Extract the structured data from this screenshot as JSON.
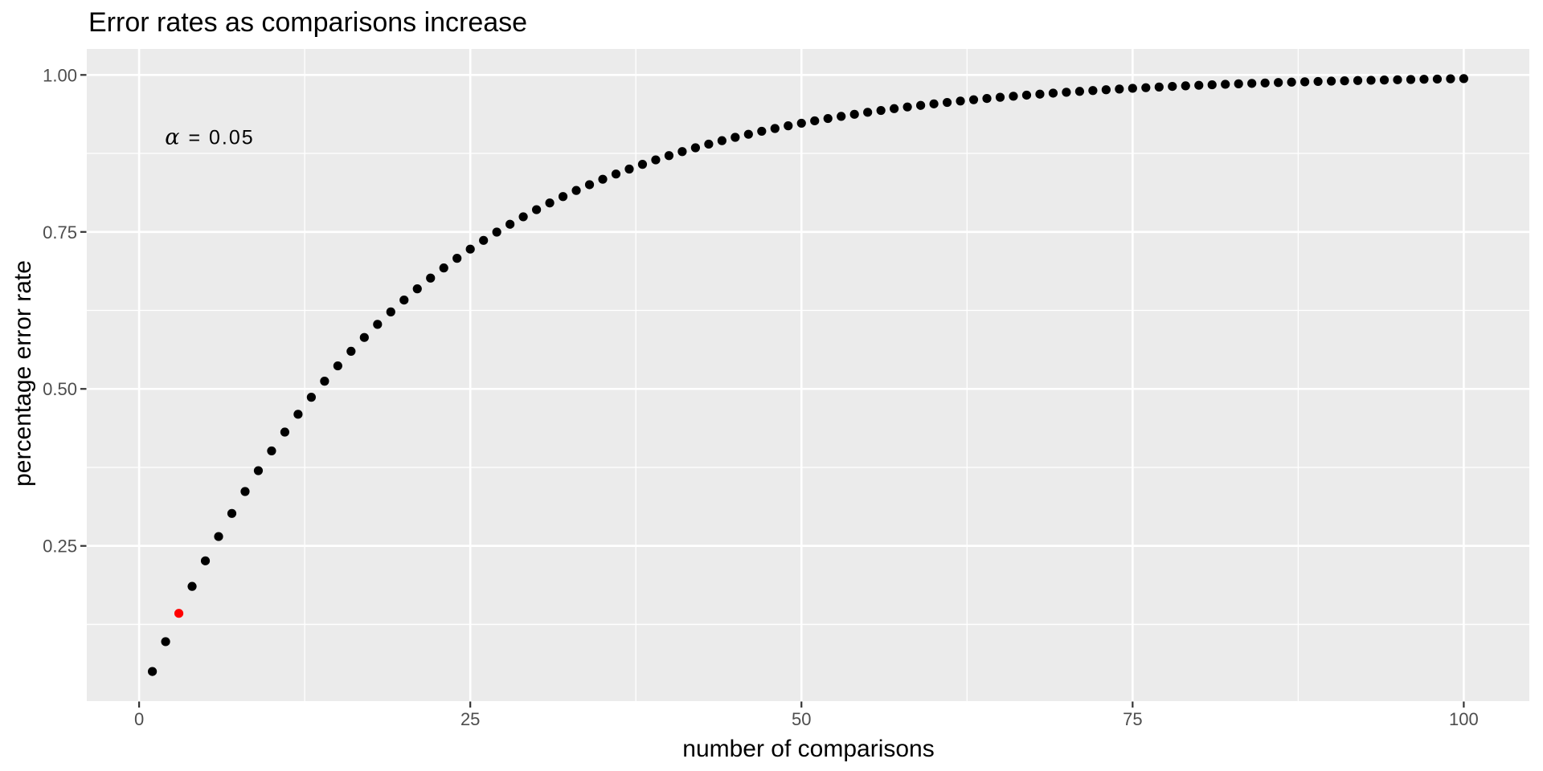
{
  "chart_data": {
    "type": "scatter",
    "title": "Error rates as comparisons increase",
    "xlabel": "number of comparisons",
    "ylabel": "percentage error rate",
    "annotation": {
      "text": "α = 0.05",
      "symbol": "α",
      "rest": " = 0.05",
      "x": 5,
      "y": 0.9
    },
    "x": [
      1,
      2,
      3,
      4,
      5,
      6,
      7,
      8,
      9,
      10,
      11,
      12,
      13,
      14,
      15,
      16,
      17,
      18,
      19,
      20,
      21,
      22,
      23,
      24,
      25,
      26,
      27,
      28,
      29,
      30,
      31,
      32,
      33,
      34,
      35,
      36,
      37,
      38,
      39,
      40,
      41,
      42,
      43,
      44,
      45,
      46,
      47,
      48,
      49,
      50,
      51,
      52,
      53,
      54,
      55,
      56,
      57,
      58,
      59,
      60,
      61,
      62,
      63,
      64,
      65,
      66,
      67,
      68,
      69,
      70,
      71,
      72,
      73,
      74,
      75,
      76,
      77,
      78,
      79,
      80,
      81,
      82,
      83,
      84,
      85,
      86,
      87,
      88,
      89,
      90,
      91,
      92,
      93,
      94,
      95,
      96,
      97,
      98,
      99,
      100
    ],
    "y": [
      0.05,
      0.0975,
      0.1426,
      0.1855,
      0.2262,
      0.2649,
      0.3017,
      0.3366,
      0.3698,
      0.4013,
      0.4312,
      0.4596,
      0.4867,
      0.5123,
      0.5367,
      0.5599,
      0.5819,
      0.6028,
      0.6226,
      0.6415,
      0.6594,
      0.6765,
      0.6926,
      0.708,
      0.7226,
      0.7365,
      0.7497,
      0.7622,
      0.7741,
      0.7854,
      0.7961,
      0.8063,
      0.816,
      0.8252,
      0.8339,
      0.8422,
      0.8501,
      0.8576,
      0.8647,
      0.8715,
      0.8779,
      0.884,
      0.8898,
      0.8953,
      0.9006,
      0.9055,
      0.9103,
      0.9147,
      0.919,
      0.9231,
      0.9269,
      0.9306,
      0.934,
      0.9373,
      0.9405,
      0.9434,
      0.9463,
      0.949,
      0.9515,
      0.9539,
      0.9562,
      0.9584,
      0.9605,
      0.9625,
      0.9644,
      0.9661,
      0.9678,
      0.9694,
      0.971,
      0.9724,
      0.9738,
      0.9751,
      0.9764,
      0.9775,
      0.9787,
      0.9797,
      0.9807,
      0.9817,
      0.9826,
      0.9835,
      0.9843,
      0.9851,
      0.9858,
      0.9865,
      0.9872,
      0.9879,
      0.9885,
      0.989,
      0.9896,
      0.9901,
      0.9906,
      0.9911,
      0.9915,
      0.9919,
      0.9923,
      0.9927,
      0.9931,
      0.9934,
      0.9938,
      0.9941
    ],
    "highlight": {
      "index": 2,
      "x": 3,
      "y": 0.1426,
      "color": "#FF0000"
    },
    "xlim": [
      -3.95,
      104.95
    ],
    "ylim": [
      0.0028,
      1.0413
    ],
    "x_tick_values": [
      0,
      25,
      50,
      75,
      100
    ],
    "x_tick_labels": [
      "0",
      "25",
      "50",
      "75",
      "100"
    ],
    "y_tick_values": [
      0.25,
      0.5,
      0.75,
      1.0
    ],
    "y_tick_labels": [
      "0.25",
      "0.50",
      "0.75",
      "1.00"
    ],
    "x_minor_ticks": [
      12.5,
      37.5,
      62.5,
      87.5
    ],
    "y_minor_ticks": [
      0.125,
      0.375,
      0.625,
      0.875
    ],
    "grid": "major and minor white gridlines on gray panel",
    "legend": "none"
  },
  "colors": {
    "page_background": "#FFFFFF",
    "panel_background": "#EBEBEB",
    "gridline": "#FFFFFF",
    "point": "#000000",
    "highlight_point": "#FF0000",
    "axis_text": "#4D4D4D",
    "tick_mark": "#333333",
    "title_text": "#000000"
  }
}
